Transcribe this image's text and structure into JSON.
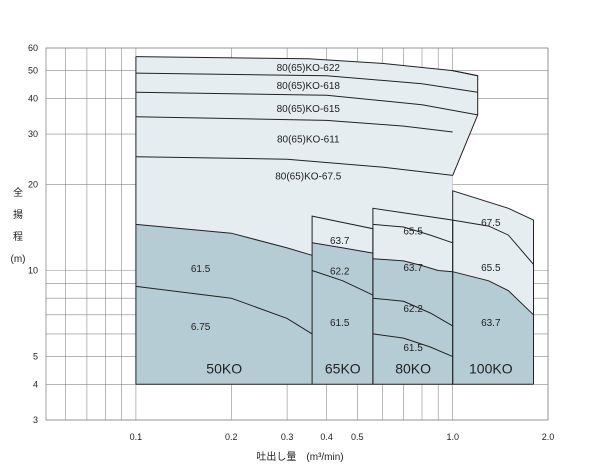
{
  "chart_data": {
    "type": "area",
    "title": "",
    "xlabel": "吐出し量　(m³/min)",
    "ylabel_chars": [
      "全",
      "揚",
      "程",
      "(m)"
    ],
    "x_scale": "log",
    "y_scale": "log",
    "xlim": [
      0.052,
      2.0
    ],
    "ylim": [
      3,
      60
    ],
    "grid": true,
    "colors": {
      "light_fill": "#e6edf1",
      "dark_fill": "#b6ccd5",
      "grid": "#8a8a8a",
      "curve": "#222222"
    },
    "x_ticks": [
      {
        "value": 0.1,
        "label": "0.1"
      },
      {
        "value": 0.2,
        "label": "0.2"
      },
      {
        "value": 0.3,
        "label": "0.3"
      },
      {
        "value": 0.4,
        "label": "0.4"
      },
      {
        "value": 0.5,
        "label": "0.5"
      },
      {
        "value": 1.0,
        "label": "1.0"
      },
      {
        "value": 2.0,
        "label": "2.0"
      }
    ],
    "y_ticks": [
      {
        "value": 3,
        "label": "3"
      },
      {
        "value": 4,
        "label": "4"
      },
      {
        "value": 5,
        "label": "5"
      },
      {
        "value": 10,
        "label": "10"
      },
      {
        "value": 20,
        "label": "20"
      },
      {
        "value": 30,
        "label": "30"
      },
      {
        "value": 40,
        "label": "40"
      },
      {
        "value": 50,
        "label": "50"
      },
      {
        "value": 60,
        "label": "60"
      }
    ],
    "regions": [
      {
        "name": "light",
        "points": [
          [
            0.1,
            56
          ],
          [
            0.35,
            55
          ],
          [
            0.6,
            53
          ],
          [
            1.0,
            50
          ],
          [
            1.2,
            48
          ],
          [
            1.2,
            35
          ],
          [
            1.0,
            21.5
          ],
          [
            1.0,
            19
          ],
          [
            1.5,
            16.5
          ],
          [
            1.8,
            15
          ],
          [
            1.8,
            4
          ],
          [
            0.1,
            4
          ]
        ]
      },
      {
        "name": "dark-50KO",
        "points": [
          [
            0.1,
            14.5
          ],
          [
            0.2,
            13.5
          ],
          [
            0.3,
            12
          ],
          [
            0.36,
            11.3
          ],
          [
            0.36,
            4
          ],
          [
            0.1,
            4
          ]
        ]
      },
      {
        "name": "dark-65KO",
        "points": [
          [
            0.36,
            12.5
          ],
          [
            0.45,
            12
          ],
          [
            0.56,
            11.5
          ],
          [
            0.56,
            4
          ],
          [
            0.36,
            4
          ]
        ]
      },
      {
        "name": "dark-80KO",
        "points": [
          [
            0.56,
            11
          ],
          [
            0.7,
            10.8
          ],
          [
            0.8,
            10.4
          ],
          [
            0.9,
            10
          ],
          [
            1.0,
            9.9
          ],
          [
            1.0,
            4
          ],
          [
            0.56,
            4
          ]
        ]
      },
      {
        "name": "dark-100KO",
        "points": [
          [
            1.0,
            9.9
          ],
          [
            1.3,
            9.2
          ],
          [
            1.5,
            8.5
          ],
          [
            1.8,
            7
          ],
          [
            1.8,
            4
          ],
          [
            1.0,
            4
          ]
        ]
      }
    ],
    "boundaries": [
      {
        "name": "50KO-box",
        "points": [
          [
            0.1,
            4
          ],
          [
            0.1,
            56
          ]
        ]
      },
      {
        "name": "65KO-box",
        "points": [
          [
            0.36,
            4
          ],
          [
            0.36,
            15.5
          ],
          [
            0.56,
            14
          ],
          [
            0.56,
            4
          ]
        ]
      },
      {
        "name": "80KO-box",
        "points": [
          [
            0.56,
            4
          ],
          [
            0.56,
            16.5
          ],
          [
            1.0,
            15
          ],
          [
            1.0,
            4
          ]
        ]
      },
      {
        "name": "100KO-box",
        "points": [
          [
            1.0,
            4
          ],
          [
            1.0,
            19
          ],
          [
            1.5,
            16.5
          ],
          [
            1.8,
            15
          ],
          [
            1.8,
            4
          ]
        ]
      },
      {
        "name": "top-right",
        "points": [
          [
            1.0,
            21.5
          ],
          [
            1.2,
            35
          ],
          [
            1.2,
            48
          ],
          [
            1.0,
            50
          ]
        ]
      },
      {
        "name": "bottom-line",
        "points": [
          [
            0.1,
            4
          ],
          [
            1.8,
            4
          ]
        ]
      }
    ],
    "series": [
      {
        "name": "80(65)KO-622",
        "values": [
          [
            0.1,
            56
          ],
          [
            0.35,
            55
          ],
          [
            0.6,
            53
          ],
          [
            1.0,
            50
          ],
          [
            1.2,
            48
          ]
        ]
      },
      {
        "name": "80(65)KO-618",
        "values": [
          [
            0.1,
            49
          ],
          [
            0.4,
            48
          ],
          [
            0.8,
            45
          ],
          [
            1.2,
            42
          ]
        ]
      },
      {
        "name": "80(65)KO-615",
        "values": [
          [
            0.1,
            42
          ],
          [
            0.4,
            41
          ],
          [
            0.8,
            38
          ],
          [
            1.2,
            35
          ]
        ]
      },
      {
        "name": "80(65)KO-611",
        "values": [
          [
            0.1,
            34.5
          ],
          [
            0.4,
            33.5
          ],
          [
            0.7,
            32
          ],
          [
            1.0,
            30.5
          ]
        ]
      },
      {
        "name": "80(65)KO-67.5",
        "values": [
          [
            0.1,
            25
          ],
          [
            0.3,
            24.5
          ],
          [
            0.6,
            23
          ],
          [
            1.0,
            21.5
          ]
        ]
      },
      {
        "name": "61.5",
        "values": [
          [
            0.1,
            14.5
          ],
          [
            0.2,
            13.5
          ],
          [
            0.3,
            12
          ],
          [
            0.36,
            11.3
          ]
        ]
      },
      {
        "name": "6.75",
        "values": [
          [
            0.1,
            8.8
          ],
          [
            0.2,
            8
          ],
          [
            0.3,
            6.8
          ],
          [
            0.36,
            6
          ]
        ]
      },
      {
        "name": "63.7",
        "values": [
          [
            0.36,
            12.5
          ],
          [
            0.45,
            12
          ],
          [
            0.56,
            11.5
          ]
        ]
      },
      {
        "name": "62.2",
        "values": [
          [
            0.36,
            10
          ],
          [
            0.45,
            9.2
          ],
          [
            0.56,
            8.2
          ]
        ]
      },
      {
        "name": "65.5",
        "values": [
          [
            0.56,
            14.5
          ],
          [
            0.7,
            14.2
          ],
          [
            0.85,
            13.3
          ],
          [
            1.0,
            12.5
          ]
        ]
      },
      {
        "name": "63.7",
        "values": [
          [
            0.56,
            11
          ],
          [
            0.7,
            10.8
          ],
          [
            0.8,
            10.4
          ],
          [
            0.9,
            10
          ],
          [
            1.0,
            9.9
          ]
        ]
      },
      {
        "name": "62.2",
        "values": [
          [
            0.56,
            8
          ],
          [
            0.7,
            7.8
          ],
          [
            0.85,
            7.1
          ],
          [
            1.0,
            6.4
          ]
        ]
      },
      {
        "name": "61.5",
        "values": [
          [
            0.56,
            6
          ],
          [
            0.7,
            5.8
          ],
          [
            0.85,
            5.4
          ],
          [
            1.0,
            5
          ]
        ]
      },
      {
        "name": "67.5",
        "values": [
          [
            1.0,
            15
          ],
          [
            1.3,
            14.3
          ],
          [
            1.5,
            13.3
          ],
          [
            1.8,
            10.5
          ]
        ]
      },
      {
        "name": "63.7",
        "values": [
          [
            1.0,
            9.9
          ],
          [
            1.3,
            9.2
          ],
          [
            1.5,
            8.5
          ],
          [
            1.8,
            7
          ]
        ]
      }
    ],
    "annotations": [
      {
        "text": "80(65)KO-622",
        "x": 0.35,
        "y": 51.5,
        "size": "lbl"
      },
      {
        "text": "80(65)KO-618",
        "x": 0.35,
        "y": 44.5,
        "size": "lbl"
      },
      {
        "text": "80(65)KO-615",
        "x": 0.35,
        "y": 37,
        "size": "lbl"
      },
      {
        "text": "80(65)KO-611",
        "x": 0.35,
        "y": 29,
        "size": "lbl"
      },
      {
        "text": "80(65)KO-67.5",
        "x": 0.35,
        "y": 21.5,
        "size": "lbl"
      },
      {
        "text": "61.5",
        "x": 0.16,
        "y": 10.2,
        "size": "lbl"
      },
      {
        "text": "6.75",
        "x": 0.16,
        "y": 6.4,
        "size": "lbl"
      },
      {
        "text": "63.7",
        "x": 0.44,
        "y": 12.8,
        "size": "lbl"
      },
      {
        "text": "62.2",
        "x": 0.44,
        "y": 10,
        "size": "lbl"
      },
      {
        "text": "61.5",
        "x": 0.44,
        "y": 6.6,
        "size": "lbl"
      },
      {
        "text": "65.5",
        "x": 0.75,
        "y": 13.8,
        "size": "lbl"
      },
      {
        "text": "63.7",
        "x": 0.75,
        "y": 10.3,
        "size": "lbl"
      },
      {
        "text": "62.2",
        "x": 0.75,
        "y": 7.4,
        "size": "lbl"
      },
      {
        "text": "61.5",
        "x": 0.75,
        "y": 5.4,
        "size": "lbl"
      },
      {
        "text": "67.5",
        "x": 1.32,
        "y": 14.8,
        "size": "lbl"
      },
      {
        "text": "65.5",
        "x": 1.32,
        "y": 10.3,
        "size": "lbl"
      },
      {
        "text": "63.7",
        "x": 1.32,
        "y": 6.6,
        "size": "lbl"
      },
      {
        "text": "50KO",
        "x": 0.19,
        "y": 4.3,
        "size": "big"
      },
      {
        "text": "65KO",
        "x": 0.45,
        "y": 4.3,
        "size": "big"
      },
      {
        "text": "80KO",
        "x": 0.75,
        "y": 4.3,
        "size": "big"
      },
      {
        "text": "100KO",
        "x": 1.32,
        "y": 4.3,
        "size": "big"
      }
    ]
  }
}
